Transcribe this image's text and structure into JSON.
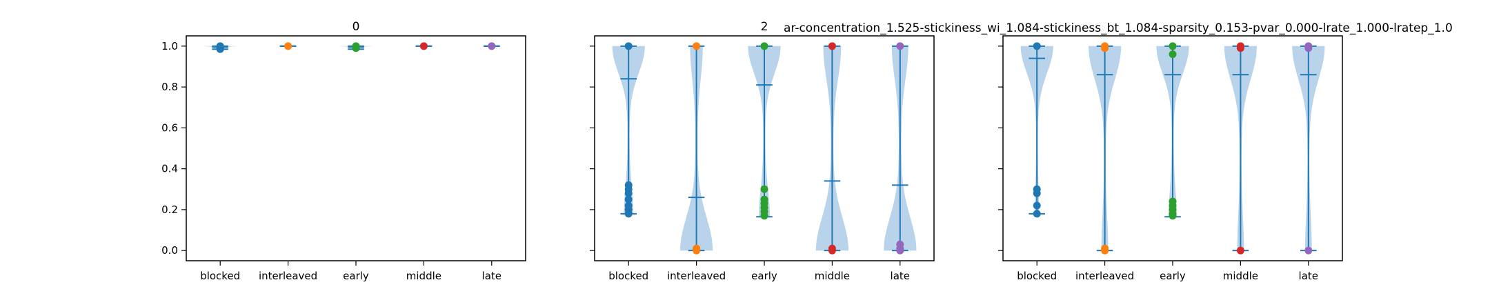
{
  "figure": {
    "suptitle": "ar-concentration_1.525-stickiness_wi_1.084-stickiness_bt_1.084-sparsity_0.153-pvar_0.000-lrate_1.000-lratep_1.0"
  },
  "style": {
    "body_color": "#a5c8e4",
    "line_color": "#1f77b4",
    "category_colors": [
      "#1f77b4",
      "#ff7f0e",
      "#2ca02c",
      "#d62728",
      "#9467bd"
    ]
  },
  "chart_data": [
    {
      "type": "violin",
      "title": "0",
      "categories": [
        "blocked",
        "interleaved",
        "early",
        "middle",
        "late"
      ],
      "ylim": [
        -0.05,
        1.05
      ],
      "yticks": [
        "0.0",
        "0.2",
        "0.4",
        "0.6",
        "0.8",
        "1.0"
      ],
      "grid": false,
      "violins": [
        {
          "min": 0.985,
          "max": 1.0,
          "mean": 0.995,
          "points": [
            1.0,
            0.995,
            0.99,
            0.985
          ]
        },
        {
          "min": 1.0,
          "max": 1.0,
          "mean": 1.0,
          "points": [
            1.0
          ]
        },
        {
          "min": 0.985,
          "max": 1.0,
          "mean": 0.995,
          "points": [
            1.0,
            0.99
          ]
        },
        {
          "min": 1.0,
          "max": 1.0,
          "mean": 1.0,
          "points": [
            1.0
          ]
        },
        {
          "min": 1.0,
          "max": 1.0,
          "mean": 1.0,
          "points": [
            1.0
          ]
        }
      ]
    },
    {
      "type": "violin",
      "title": "2",
      "categories": [
        "blocked",
        "interleaved",
        "early",
        "middle",
        "late"
      ],
      "ylim": [
        -0.05,
        1.05
      ],
      "yticks": [
        "0.0",
        "0.2",
        "0.4",
        "0.6",
        "0.8",
        "1.0"
      ],
      "grid": false,
      "violins": [
        {
          "min": 0.18,
          "max": 1.0,
          "mean": 0.84,
          "points": [
            1.0,
            0.32,
            0.3,
            0.28,
            0.25,
            0.22,
            0.2,
            0.18
          ]
        },
        {
          "min": 0.0,
          "max": 1.0,
          "mean": 0.26,
          "points": [
            1.0,
            0.01,
            0.0
          ]
        },
        {
          "min": 0.165,
          "max": 1.0,
          "mean": 0.81,
          "points": [
            1.0,
            0.3,
            0.25,
            0.23,
            0.21,
            0.19,
            0.17
          ]
        },
        {
          "min": 0.0,
          "max": 1.0,
          "mean": 0.34,
          "points": [
            1.0,
            0.01,
            0.0
          ]
        },
        {
          "min": 0.0,
          "max": 1.0,
          "mean": 0.32,
          "points": [
            1.0,
            0.03,
            0.01,
            0.0
          ]
        }
      ]
    },
    {
      "type": "violin",
      "title": "",
      "categories": [
        "blocked",
        "interleaved",
        "early",
        "middle",
        "late"
      ],
      "ylim": [
        -0.05,
        1.05
      ],
      "yticks": [
        "0.0",
        "0.2",
        "0.4",
        "0.6",
        "0.8",
        "1.0"
      ],
      "grid": false,
      "violins": [
        {
          "min": 0.18,
          "max": 1.0,
          "mean": 0.94,
          "points": [
            1.0,
            0.3,
            0.28,
            0.22,
            0.18
          ]
        },
        {
          "min": 0.0,
          "max": 1.0,
          "mean": 0.86,
          "points": [
            1.0,
            0.99,
            0.01,
            0.0
          ]
        },
        {
          "min": 0.165,
          "max": 1.0,
          "mean": 0.86,
          "points": [
            1.0,
            0.96,
            0.24,
            0.22,
            0.2,
            0.18,
            0.17
          ]
        },
        {
          "min": 0.0,
          "max": 1.0,
          "mean": 0.86,
          "points": [
            1.0,
            0.99,
            0.0
          ]
        },
        {
          "min": 0.0,
          "max": 1.0,
          "mean": 0.86,
          "points": [
            1.0,
            0.99,
            0.0
          ]
        }
      ]
    }
  ]
}
